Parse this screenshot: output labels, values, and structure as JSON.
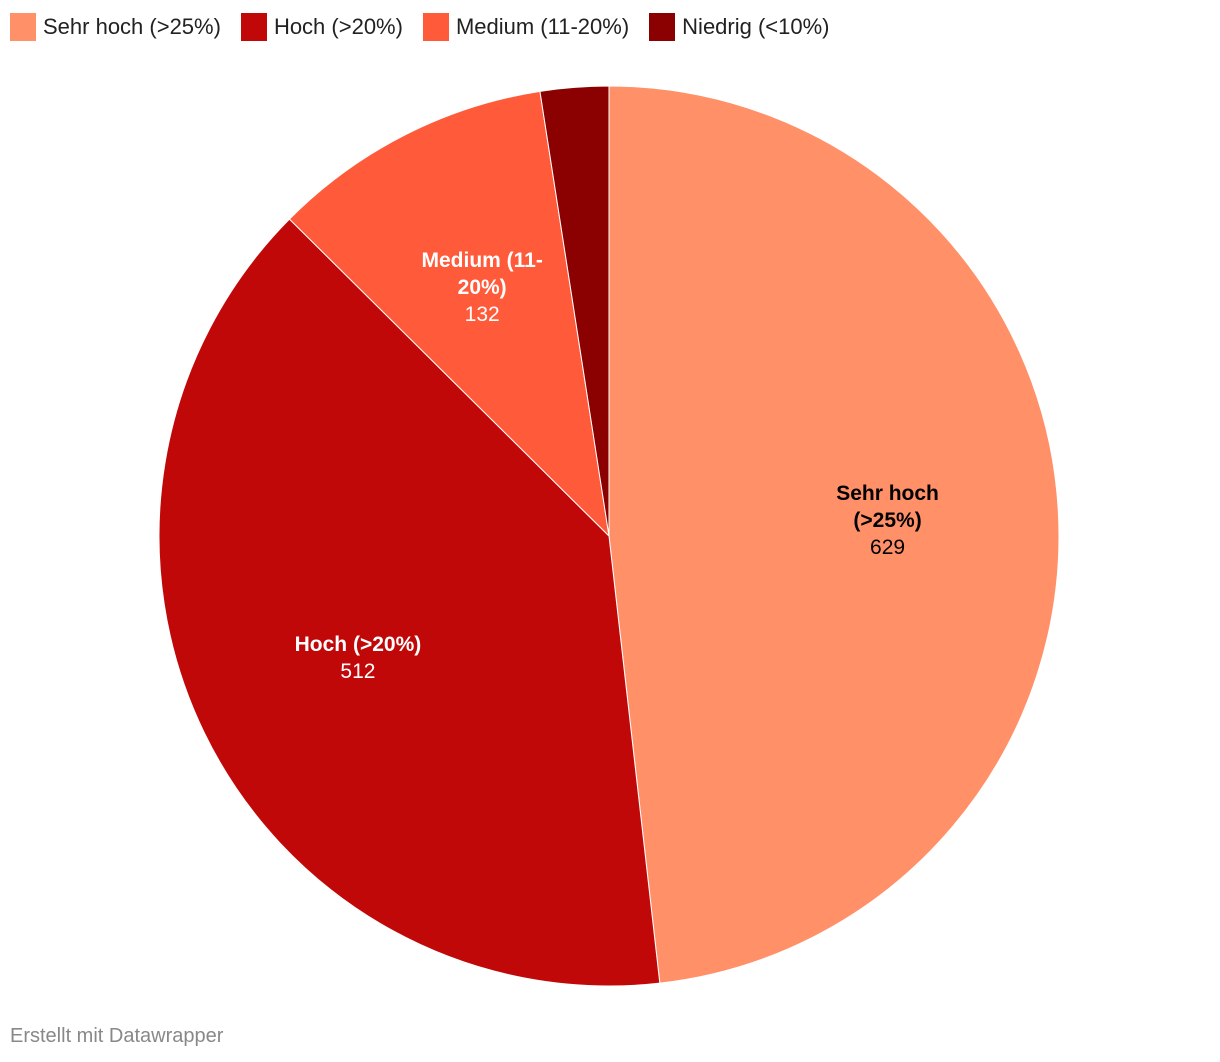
{
  "chart_data": {
    "type": "pie",
    "categories": [
      "Sehr hoch (>25%)",
      "Hoch (>20%)",
      "Medium (11-20%)",
      "Niedrig (<10%)"
    ],
    "values": [
      629,
      512,
      132,
      32
    ],
    "colors": [
      "#ff9068",
      "#c10808",
      "#ff5a3a",
      "#8b0000"
    ],
    "legend": "top-left",
    "footer": "Erstellt mit Datawrapper"
  }
}
